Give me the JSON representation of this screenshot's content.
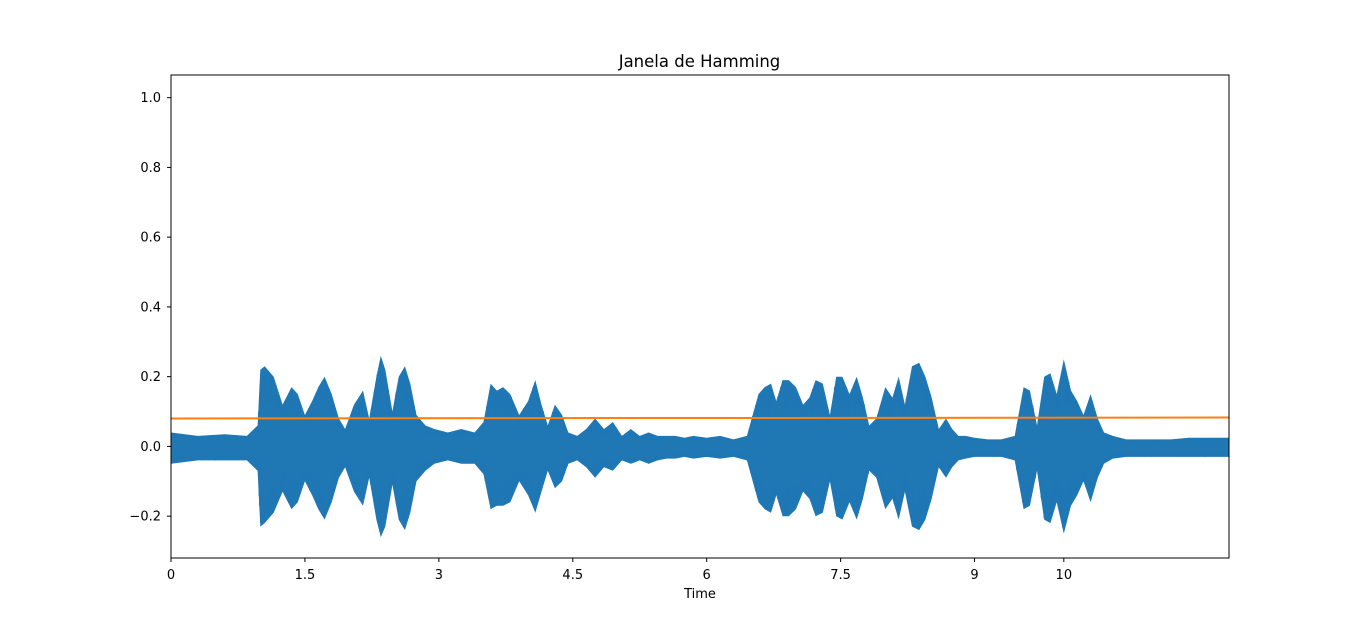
{
  "chart_data": {
    "type": "line",
    "title": "Janela de Hamming",
    "xlabel": "Time",
    "ylabel": "",
    "xlim": [
      0,
      11.85
    ],
    "ylim": [
      -0.32,
      1.065
    ],
    "x_ticks": [
      {
        "value": 0,
        "label": "0"
      },
      {
        "value": 1.5,
        "label": "1.5"
      },
      {
        "value": 3,
        "label": "3"
      },
      {
        "value": 4.5,
        "label": "4.5"
      },
      {
        "value": 6,
        "label": "6"
      },
      {
        "value": 7.5,
        "label": "7.5"
      },
      {
        "value": 9,
        "label": "9"
      },
      {
        "value": 10,
        "label": "10"
      }
    ],
    "y_ticks": [
      {
        "value": -0.2,
        "label": "−0.2"
      },
      {
        "value": 0.0,
        "label": "0.0"
      },
      {
        "value": 0.2,
        "label": "0.2"
      },
      {
        "value": 0.4,
        "label": "0.4"
      },
      {
        "value": 0.6,
        "label": "0.6"
      },
      {
        "value": 0.8,
        "label": "0.8"
      },
      {
        "value": 1.0,
        "label": "1.0"
      }
    ],
    "grid": false,
    "series": [
      {
        "color": "#1f77b4",
        "kind": "waveform-envelope",
        "x": [
          0.0,
          0.3,
          0.6,
          0.85,
          0.97,
          1.0,
          1.05,
          1.15,
          1.25,
          1.35,
          1.42,
          1.5,
          1.58,
          1.65,
          1.72,
          1.8,
          1.88,
          1.95,
          2.05,
          2.15,
          2.22,
          2.3,
          2.35,
          2.4,
          2.48,
          2.55,
          2.62,
          2.68,
          2.75,
          2.85,
          2.95,
          3.1,
          3.25,
          3.4,
          3.5,
          3.58,
          3.65,
          3.72,
          3.8,
          3.9,
          4.0,
          4.08,
          4.15,
          4.22,
          4.3,
          4.38,
          4.45,
          4.55,
          4.65,
          4.75,
          4.85,
          4.95,
          5.05,
          5.15,
          5.25,
          5.35,
          5.45,
          5.55,
          5.65,
          5.75,
          5.85,
          6.0,
          6.15,
          6.3,
          6.45,
          6.58,
          6.65,
          6.72,
          6.78,
          6.85,
          6.92,
          7.0,
          7.08,
          7.15,
          7.22,
          7.3,
          7.38,
          7.45,
          7.52,
          7.6,
          7.68,
          7.75,
          7.82,
          7.9,
          8.0,
          8.08,
          8.15,
          8.22,
          8.3,
          8.38,
          8.45,
          8.52,
          8.6,
          8.68,
          8.75,
          8.82,
          8.9,
          9.0,
          9.15,
          9.3,
          9.45,
          9.55,
          9.62,
          9.7,
          9.78,
          9.85,
          9.92,
          10.0,
          10.08,
          10.15,
          10.22,
          10.3,
          10.38,
          10.45,
          10.55,
          10.7,
          10.85,
          11.0,
          11.2,
          11.4,
          11.6,
          11.85
        ],
        "upper": [
          0.04,
          0.03,
          0.035,
          0.03,
          0.06,
          0.22,
          0.23,
          0.2,
          0.12,
          0.17,
          0.15,
          0.09,
          0.13,
          0.17,
          0.2,
          0.15,
          0.08,
          0.05,
          0.12,
          0.16,
          0.08,
          0.2,
          0.26,
          0.22,
          0.1,
          0.2,
          0.23,
          0.18,
          0.09,
          0.06,
          0.05,
          0.04,
          0.05,
          0.04,
          0.07,
          0.18,
          0.16,
          0.17,
          0.15,
          0.09,
          0.13,
          0.19,
          0.12,
          0.06,
          0.12,
          0.09,
          0.04,
          0.03,
          0.05,
          0.08,
          0.05,
          0.07,
          0.03,
          0.05,
          0.03,
          0.04,
          0.03,
          0.03,
          0.03,
          0.025,
          0.03,
          0.025,
          0.03,
          0.02,
          0.03,
          0.15,
          0.17,
          0.18,
          0.13,
          0.19,
          0.19,
          0.17,
          0.12,
          0.14,
          0.19,
          0.18,
          0.09,
          0.2,
          0.2,
          0.15,
          0.2,
          0.14,
          0.06,
          0.08,
          0.17,
          0.14,
          0.2,
          0.12,
          0.23,
          0.24,
          0.2,
          0.14,
          0.05,
          0.08,
          0.05,
          0.03,
          0.03,
          0.025,
          0.02,
          0.02,
          0.03,
          0.17,
          0.16,
          0.06,
          0.2,
          0.21,
          0.15,
          0.25,
          0.16,
          0.13,
          0.09,
          0.15,
          0.08,
          0.04,
          0.03,
          0.02,
          0.02,
          0.02,
          0.02,
          0.025,
          0.025,
          0.025
        ],
        "lower": [
          -0.05,
          -0.04,
          -0.04,
          -0.04,
          -0.07,
          -0.23,
          -0.22,
          -0.19,
          -0.13,
          -0.18,
          -0.16,
          -0.1,
          -0.14,
          -0.18,
          -0.21,
          -0.16,
          -0.09,
          -0.06,
          -0.13,
          -0.17,
          -0.09,
          -0.21,
          -0.26,
          -0.23,
          -0.11,
          -0.21,
          -0.24,
          -0.19,
          -0.1,
          -0.07,
          -0.05,
          -0.04,
          -0.05,
          -0.05,
          -0.08,
          -0.18,
          -0.17,
          -0.17,
          -0.16,
          -0.1,
          -0.14,
          -0.19,
          -0.13,
          -0.07,
          -0.12,
          -0.1,
          -0.05,
          -0.04,
          -0.06,
          -0.09,
          -0.06,
          -0.07,
          -0.04,
          -0.05,
          -0.04,
          -0.05,
          -0.04,
          -0.035,
          -0.035,
          -0.03,
          -0.035,
          -0.03,
          -0.035,
          -0.03,
          -0.04,
          -0.16,
          -0.18,
          -0.19,
          -0.14,
          -0.2,
          -0.2,
          -0.18,
          -0.13,
          -0.15,
          -0.2,
          -0.19,
          -0.1,
          -0.2,
          -0.21,
          -0.16,
          -0.21,
          -0.15,
          -0.07,
          -0.09,
          -0.18,
          -0.15,
          -0.21,
          -0.13,
          -0.23,
          -0.24,
          -0.21,
          -0.15,
          -0.06,
          -0.09,
          -0.06,
          -0.04,
          -0.035,
          -0.03,
          -0.03,
          -0.03,
          -0.04,
          -0.18,
          -0.17,
          -0.07,
          -0.21,
          -0.22,
          -0.16,
          -0.25,
          -0.17,
          -0.14,
          -0.1,
          -0.16,
          -0.09,
          -0.05,
          -0.035,
          -0.03,
          -0.03,
          -0.03,
          -0.03,
          -0.03,
          -0.03,
          -0.03
        ]
      },
      {
        "color": "#ff7f0e",
        "kind": "line",
        "x": [
          0,
          11.85
        ],
        "y": [
          0.08,
          0.083
        ]
      }
    ]
  }
}
